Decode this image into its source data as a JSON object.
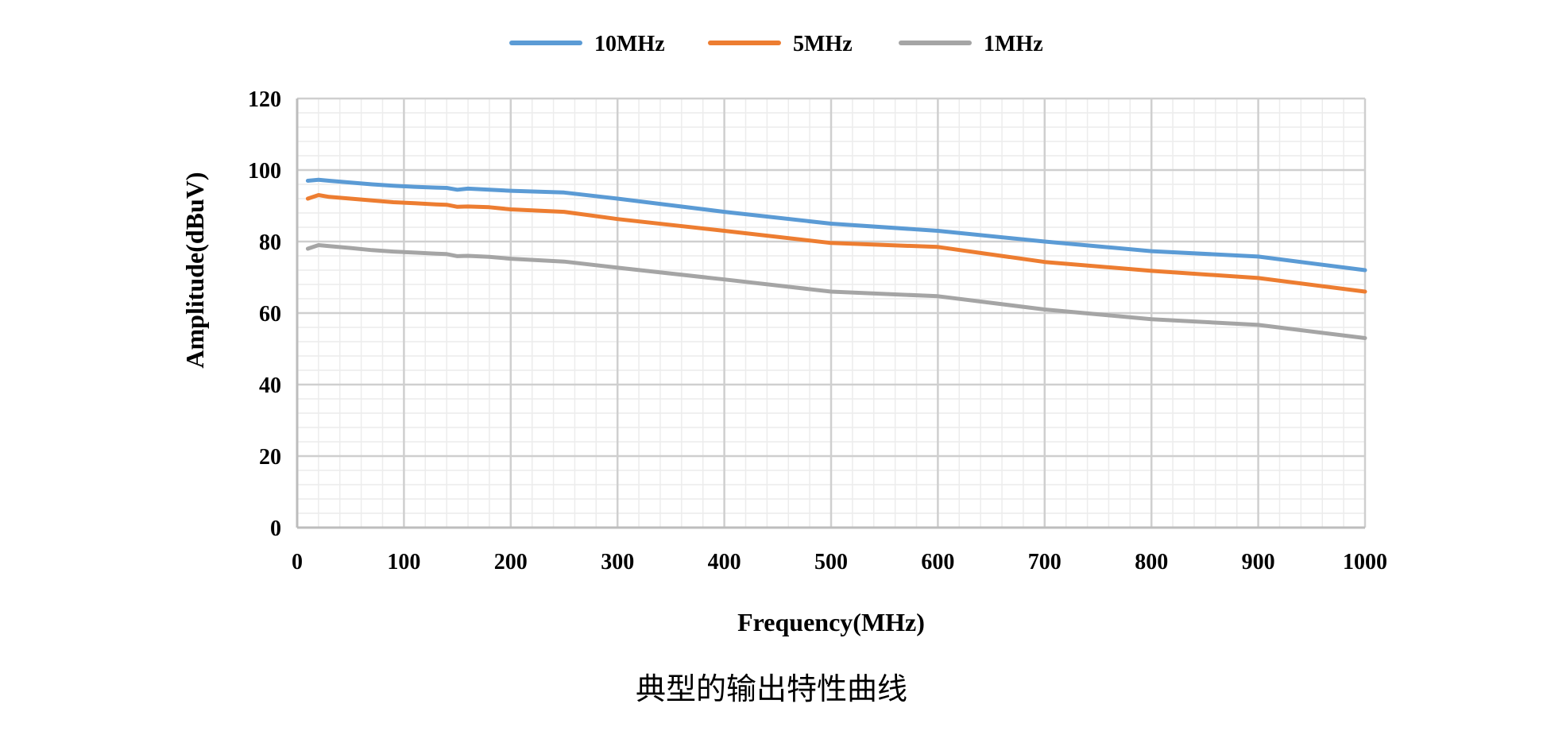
{
  "chart_data": {
    "type": "line",
    "title": "",
    "xlabel": "Frequency(MHz)",
    "ylabel": "Amplitude(dBuV)",
    "xlim": [
      0,
      1000
    ],
    "ylim": [
      0,
      120
    ],
    "xticks": [
      0,
      100,
      200,
      300,
      400,
      500,
      600,
      700,
      800,
      900,
      1000
    ],
    "yticks": [
      0,
      20,
      40,
      60,
      80,
      100,
      120
    ],
    "x_minor_step": 20,
    "y_minor_step": 4,
    "grid": true,
    "legend_position": "top-center",
    "series": [
      {
        "name": "10MHz",
        "color": "#5B9BD5",
        "x": [
          10,
          20,
          30,
          50,
          70,
          90,
          110,
          130,
          140,
          150,
          160,
          180,
          200,
          250,
          300,
          400,
          500,
          600,
          700,
          800,
          900,
          1000
        ],
        "values": [
          97,
          97.3,
          97,
          96.5,
          96,
          95.6,
          95.3,
          95.1,
          95.0,
          94.5,
          94.8,
          94.5,
          94.2,
          93.7,
          92,
          88.3,
          85,
          83,
          80,
          77.3,
          75.8,
          72
        ]
      },
      {
        "name": "5MHz",
        "color": "#ED7D31",
        "x": [
          10,
          20,
          30,
          50,
          70,
          90,
          110,
          130,
          140,
          150,
          160,
          180,
          200,
          250,
          300,
          400,
          500,
          600,
          700,
          800,
          900,
          1000
        ],
        "values": [
          92,
          93,
          92.5,
          92,
          91.5,
          91,
          90.7,
          90.4,
          90.3,
          89.7,
          89.8,
          89.6,
          89,
          88.3,
          86.3,
          83,
          79.6,
          78.5,
          74.3,
          71.8,
          69.8,
          66
        ]
      },
      {
        "name": "1MHz",
        "color": "#A5A5A5",
        "x": [
          10,
          20,
          30,
          50,
          70,
          90,
          110,
          130,
          140,
          150,
          160,
          180,
          200,
          250,
          300,
          400,
          500,
          600,
          700,
          800,
          900,
          1000
        ],
        "values": [
          78,
          79,
          78.7,
          78.2,
          77.6,
          77.2,
          76.9,
          76.6,
          76.5,
          75.9,
          76.0,
          75.7,
          75.2,
          74.4,
          72.7,
          69.4,
          66,
          64.7,
          61,
          58.3,
          56.7,
          53
        ]
      }
    ]
  },
  "caption": "典型的输出特性曲线"
}
